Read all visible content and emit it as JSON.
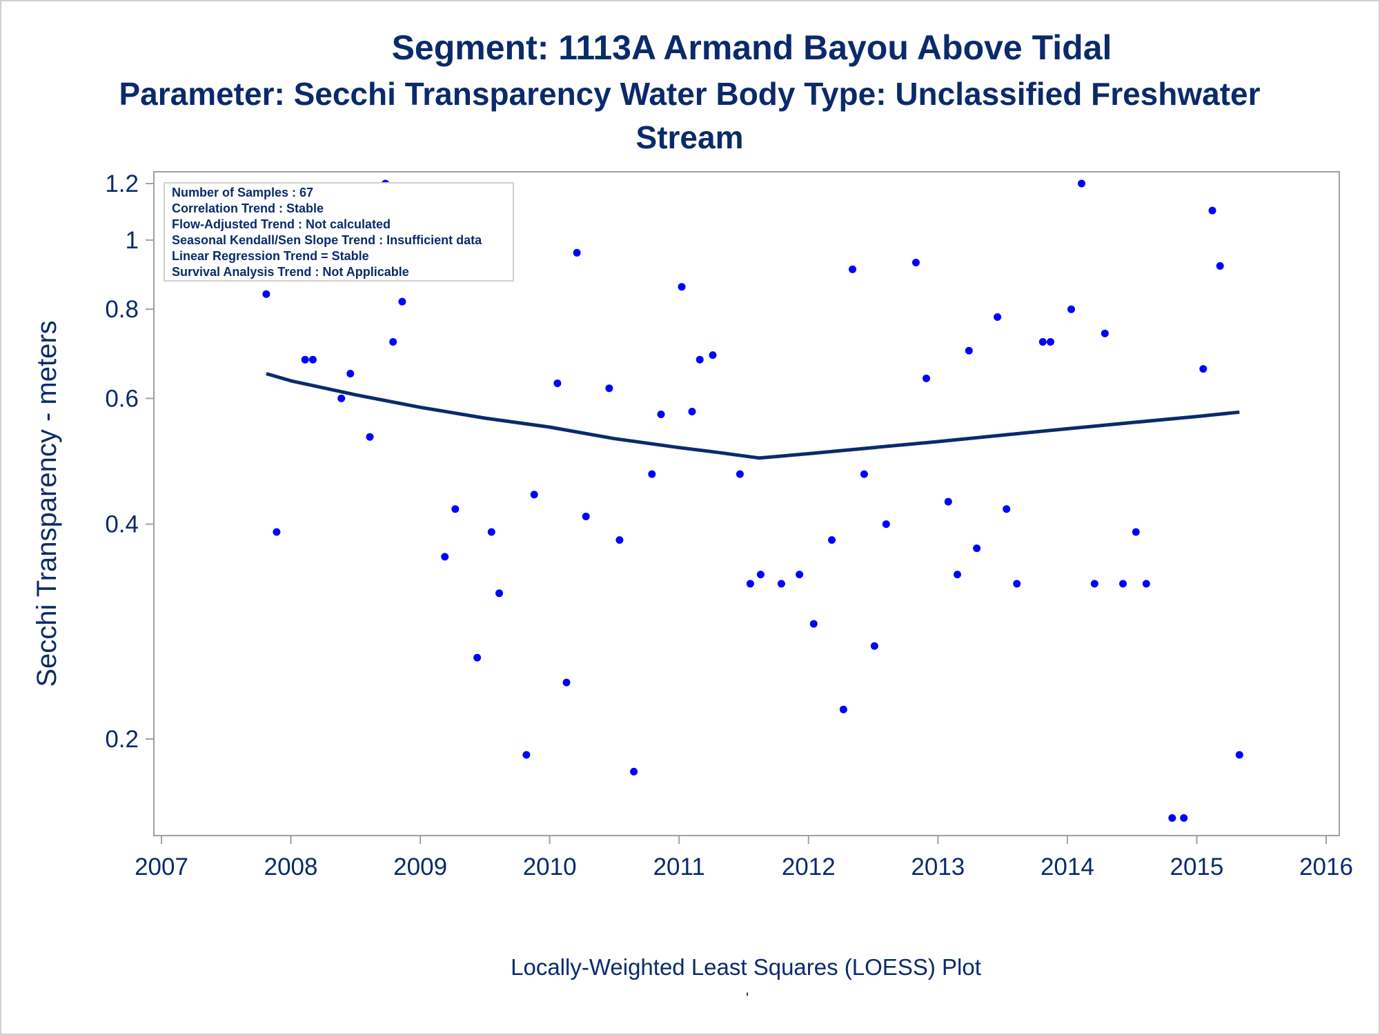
{
  "title": "Segment: 1113A  Armand Bayou Above Tidal",
  "subtitle": "Parameter: Secchi Transparency   Water Body Type: Unclassified Freshwater Stream",
  "footnote_mark": "'",
  "colors": {
    "text": "#0a2a6b",
    "points": "#0000ff",
    "loess": "#0a2a6b",
    "frame": "#a0a0a0"
  },
  "stats_box": [
    "Number of Samples : 67",
    "Correlation Trend : Stable",
    "Flow-Adjusted Trend : Not calculated",
    "Seasonal Kendall/Sen Slope Trend : Insufficient data",
    "Linear Regression Trend = Stable",
    "Survival Analysis Trend : Not Applicable"
  ],
  "chart_data": {
    "type": "scatter",
    "title": "Segment: 1113A  Armand Bayou Above Tidal",
    "subtitle": "Parameter: Secchi Transparency   Water Body Type: Unclassified Freshwater Stream",
    "xlabel": "Locally-Weighted Least Squares (LOESS) Plot",
    "ylabel": "Secchi Transparency - meters",
    "y_scale": "log",
    "xlim": [
      2007,
      2016
    ],
    "ylim": [
      0.152,
      1.23
    ],
    "x_ticks": [
      2007,
      2008,
      2009,
      2010,
      2011,
      2012,
      2013,
      2014,
      2015,
      2016
    ],
    "y_ticks": [
      0.2,
      0.4,
      0.6,
      0.8,
      1,
      1.2
    ],
    "y_tick_labels": [
      "0.2",
      "0.4",
      "0.6",
      "0.8",
      "1",
      "1.2"
    ],
    "grid": false,
    "series": [
      {
        "type": "scatter",
        "values": [
          [
            2007.81,
            0.84
          ],
          [
            2007.89,
            0.39
          ],
          [
            2008.11,
            0.68
          ],
          [
            2008.17,
            0.68
          ],
          [
            2008.39,
            0.6
          ],
          [
            2008.46,
            0.65
          ],
          [
            2008.61,
            0.53
          ],
          [
            2008.73,
            1.2
          ],
          [
            2008.79,
            0.72
          ],
          [
            2008.86,
            0.82
          ],
          [
            2009.01,
            0.99
          ],
          [
            2009.19,
            0.36
          ],
          [
            2009.27,
            0.42
          ],
          [
            2009.44,
            0.26
          ],
          [
            2009.55,
            0.39
          ],
          [
            2009.61,
            0.32
          ],
          [
            2009.82,
            0.19
          ],
          [
            2009.88,
            0.44
          ],
          [
            2010.06,
            0.63
          ],
          [
            2010.13,
            0.24
          ],
          [
            2010.21,
            0.96
          ],
          [
            2010.28,
            0.41
          ],
          [
            2010.46,
            0.62
          ],
          [
            2010.54,
            0.38
          ],
          [
            2010.65,
            0.18
          ],
          [
            2010.79,
            0.47
          ],
          [
            2010.86,
            0.57
          ],
          [
            2011.02,
            0.86
          ],
          [
            2011.1,
            0.575
          ],
          [
            2011.16,
            0.68
          ],
          [
            2011.26,
            0.69
          ],
          [
            2011.47,
            0.47
          ],
          [
            2011.55,
            0.33
          ],
          [
            2011.63,
            0.34
          ],
          [
            2011.79,
            0.33
          ],
          [
            2011.93,
            0.34
          ],
          [
            2012.04,
            0.29
          ],
          [
            2012.18,
            0.38
          ],
          [
            2012.27,
            0.22
          ],
          [
            2012.34,
            0.91
          ],
          [
            2012.43,
            0.47
          ],
          [
            2012.51,
            0.27
          ],
          [
            2012.6,
            0.4
          ],
          [
            2012.83,
            0.93
          ],
          [
            2012.91,
            0.64
          ],
          [
            2013.08,
            0.43
          ],
          [
            2013.15,
            0.34
          ],
          [
            2013.24,
            0.7
          ],
          [
            2013.3,
            0.37
          ],
          [
            2013.46,
            0.78
          ],
          [
            2013.53,
            0.42
          ],
          [
            2013.61,
            0.33
          ],
          [
            2013.81,
            0.72
          ],
          [
            2013.87,
            0.72
          ],
          [
            2014.03,
            0.8
          ],
          [
            2014.11,
            1.2
          ],
          [
            2014.21,
            0.33
          ],
          [
            2014.29,
            0.74
          ],
          [
            2014.43,
            0.33
          ],
          [
            2014.53,
            0.39
          ],
          [
            2014.61,
            0.33
          ],
          [
            2014.81,
            0.155
          ],
          [
            2014.9,
            0.155
          ],
          [
            2015.05,
            0.66
          ],
          [
            2015.12,
            1.1
          ],
          [
            2015.18,
            0.92
          ],
          [
            2015.33,
            0.19
          ]
        ]
      },
      {
        "type": "line",
        "values": [
          [
            2007.81,
            0.65
          ],
          [
            2008.0,
            0.635
          ],
          [
            2008.5,
            0.607
          ],
          [
            2009.0,
            0.583
          ],
          [
            2009.5,
            0.563
          ],
          [
            2010.0,
            0.547
          ],
          [
            2010.5,
            0.527
          ],
          [
            2011.0,
            0.512
          ],
          [
            2011.3,
            0.504
          ],
          [
            2011.62,
            0.495
          ],
          [
            2012.0,
            0.502
          ],
          [
            2012.5,
            0.512
          ],
          [
            2013.0,
            0.522
          ],
          [
            2013.5,
            0.533
          ],
          [
            2014.0,
            0.544
          ],
          [
            2014.5,
            0.555
          ],
          [
            2015.0,
            0.566
          ],
          [
            2015.33,
            0.574
          ]
        ]
      }
    ]
  }
}
